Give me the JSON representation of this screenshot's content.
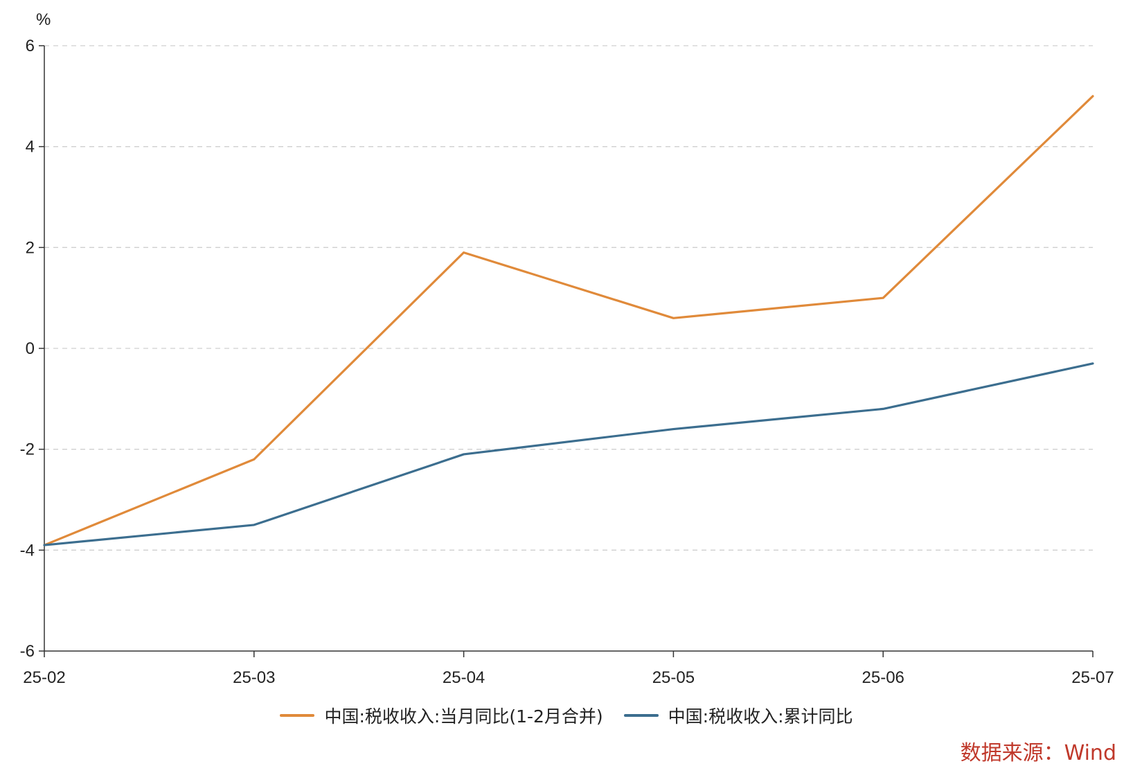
{
  "chart_data": {
    "type": "line",
    "unit_label": "%",
    "categories": [
      "25-02",
      "25-03",
      "25-04",
      "25-05",
      "25-06",
      "25-07"
    ],
    "series": [
      {
        "name": "中国:税收收入:当月同比(1-2月合并)",
        "color": "#e08a3a",
        "values": [
          -3.9,
          -2.2,
          1.9,
          0.6,
          1.0,
          5.0
        ]
      },
      {
        "name": "中国:税收收入:累计同比",
        "color": "#3c6e8f",
        "values": [
          -3.9,
          -3.5,
          -2.1,
          -1.6,
          -1.2,
          -0.3
        ]
      }
    ],
    "ylim": [
      -6,
      6
    ],
    "yticks": [
      "6",
      "4",
      "2",
      "0",
      "-2",
      "-4",
      "-6"
    ],
    "grid": true,
    "legend_position": "bottom-center"
  },
  "source_note": "数据来源：Wind"
}
